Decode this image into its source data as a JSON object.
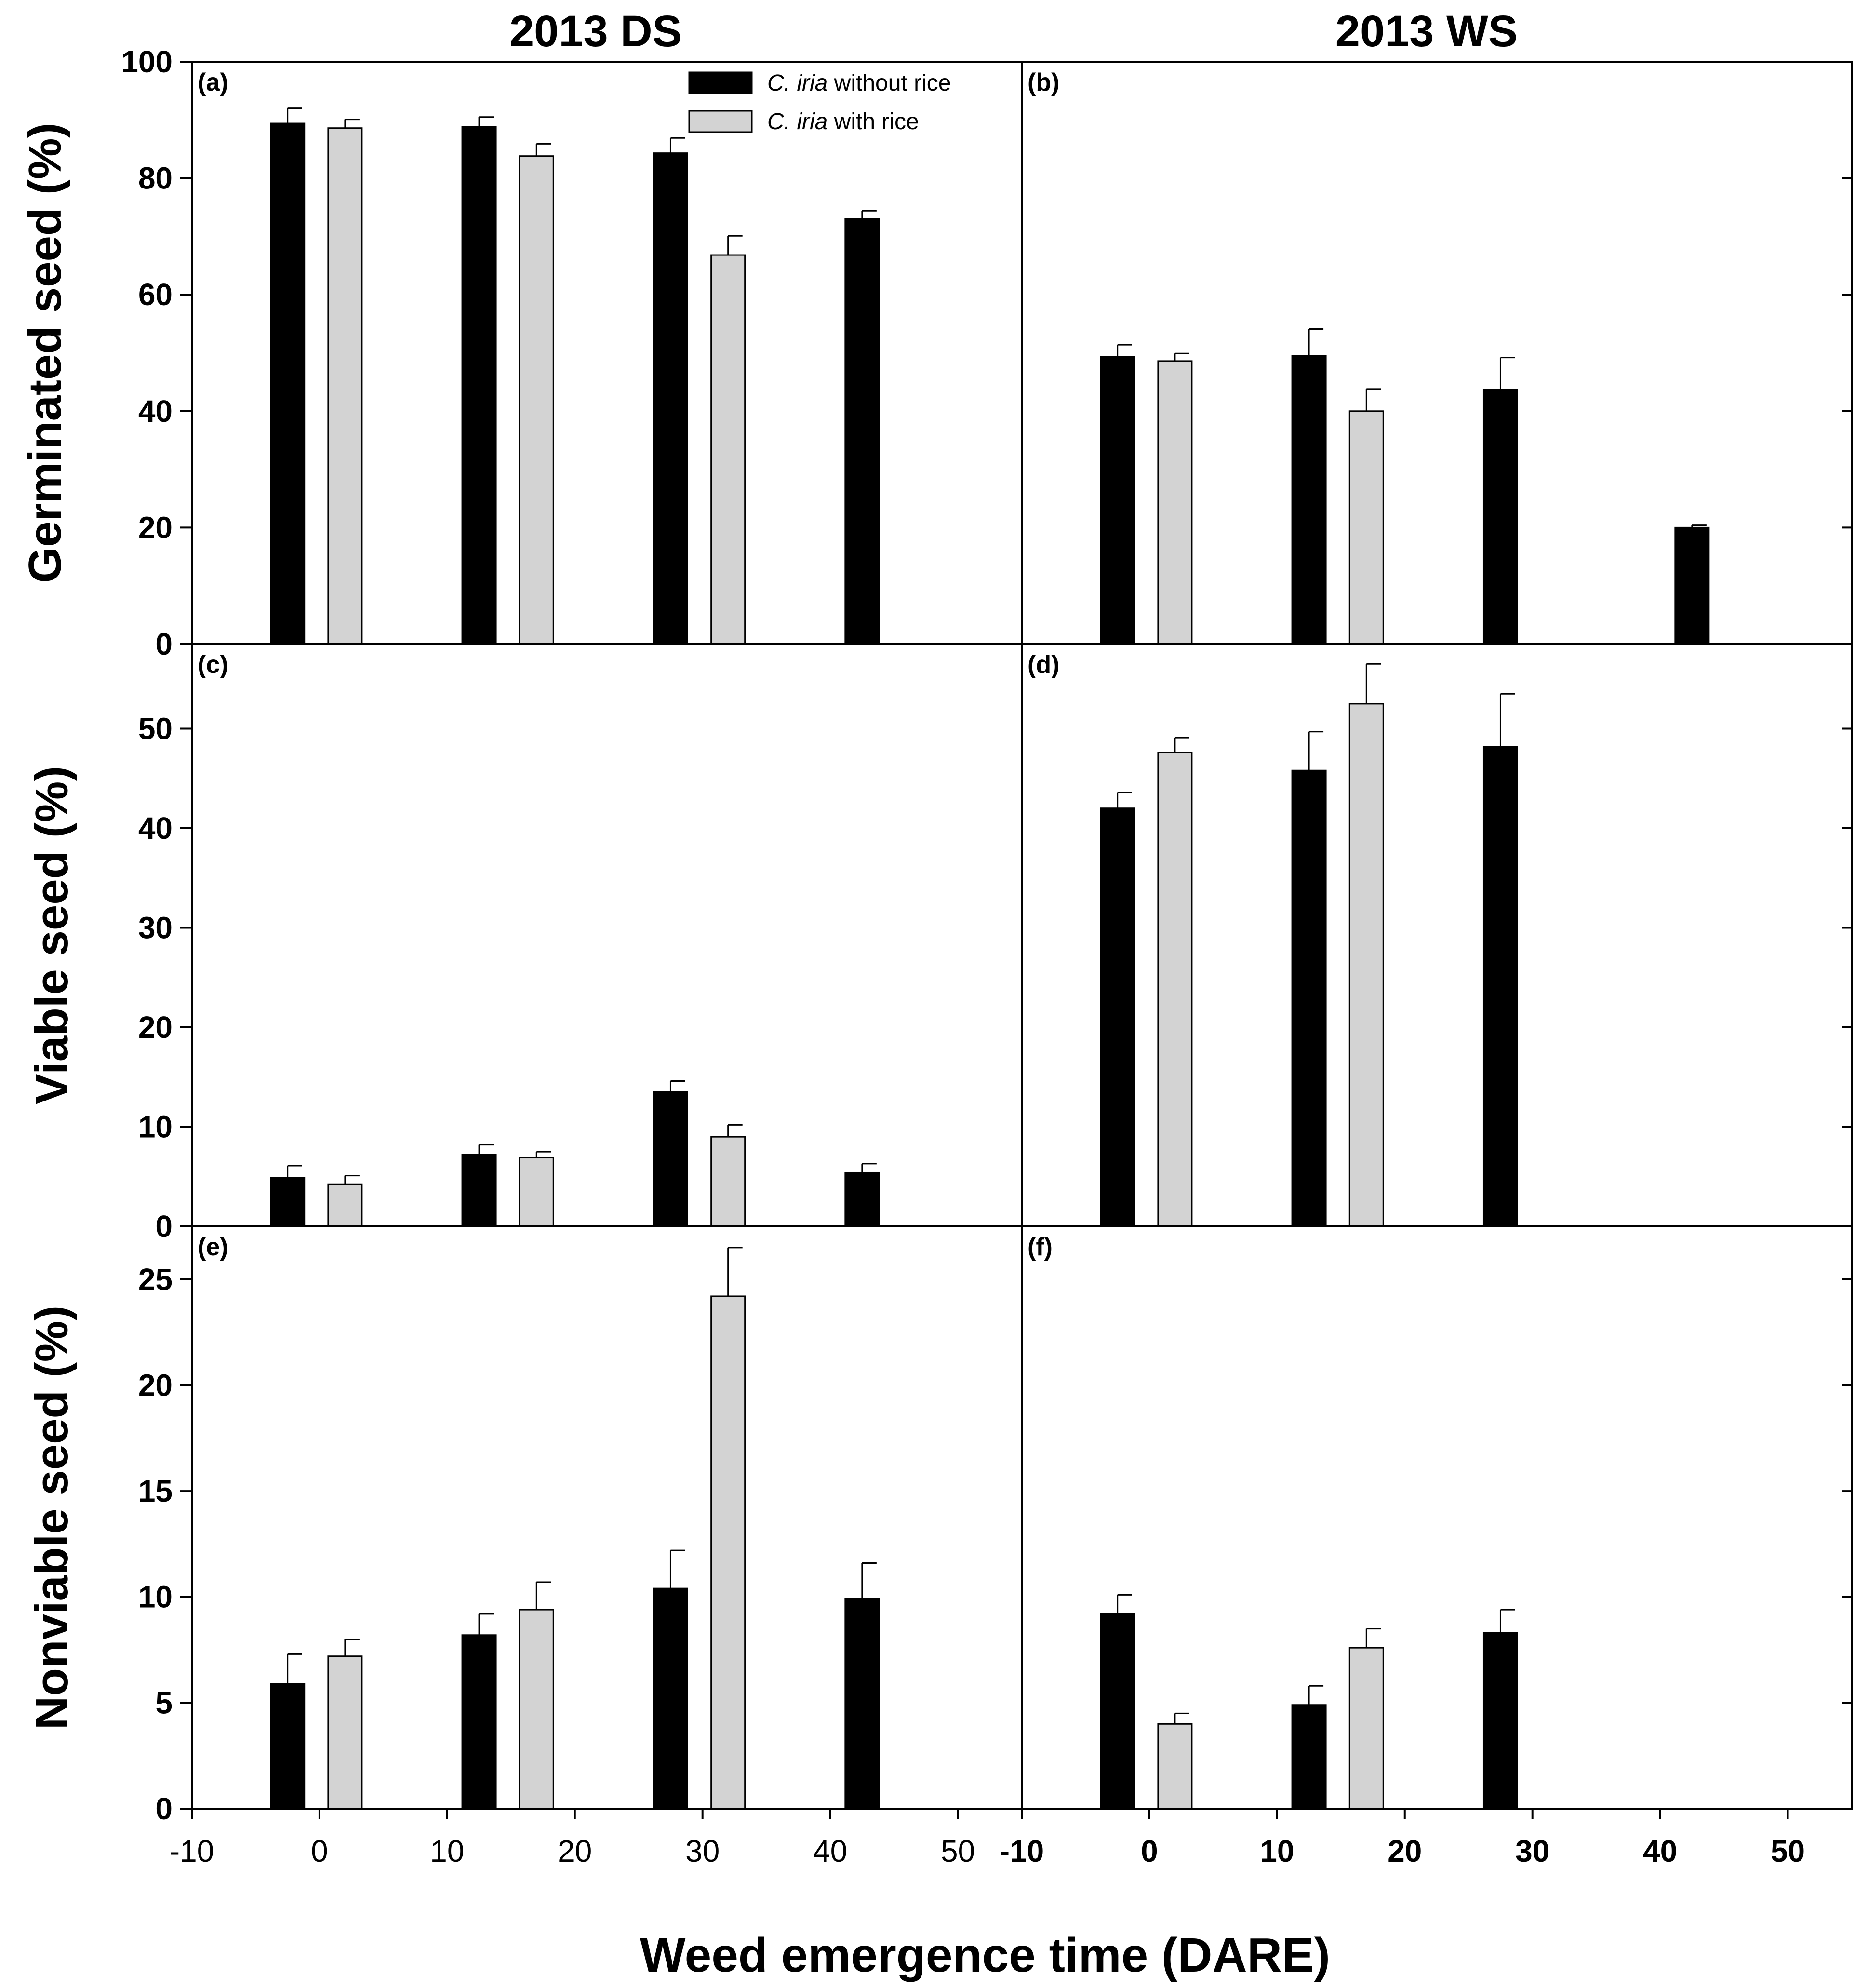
{
  "figure": {
    "column_titles": [
      "2013 DS",
      "2013 WS"
    ],
    "xlabel": "Weed emergence time (DARE)",
    "legend": [
      {
        "species": "C. iria",
        "rest": " without rice",
        "color": "#000000"
      },
      {
        "species": "C. iria",
        "rest": " with rice",
        "color": "#d3d3d3"
      }
    ]
  },
  "chart_data": [
    {
      "type": "bar",
      "panel": "(a)",
      "season": "2013 DS",
      "title": "2013 DS",
      "ylabel": "Germinated seed (%)",
      "xlabel": "Weed emergence time (DARE)",
      "xlim": [
        -10,
        55
      ],
      "ylim": [
        0,
        100
      ],
      "yticks": [
        0,
        20,
        40,
        60,
        80,
        100
      ],
      "xticks": [
        -10,
        0,
        10,
        20,
        30,
        40,
        50
      ],
      "series": [
        {
          "name": "C. iria without rice",
          "color": "#000000",
          "points": [
            {
              "x": -2.5,
              "y": 89.4,
              "err": 2.6
            },
            {
              "x": 12.5,
              "y": 88.8,
              "err": 1.7
            },
            {
              "x": 27.5,
              "y": 84.3,
              "err": 2.6
            },
            {
              "x": 42.5,
              "y": 73.0,
              "err": 1.4
            }
          ]
        },
        {
          "name": "C. iria with rice",
          "color": "#d3d3d3",
          "points": [
            {
              "x": 2,
              "y": 88.6,
              "err": 1.5
            },
            {
              "x": 17,
              "y": 83.8,
              "err": 2.1
            },
            {
              "x": 32,
              "y": 66.8,
              "err": 3.3
            }
          ]
        }
      ]
    },
    {
      "type": "bar",
      "panel": "(b)",
      "season": "2013 WS",
      "title": "2013 WS",
      "ylabel": "Germinated seed (%)",
      "xlabel": "Weed emergence time (DARE)",
      "xlim": [
        -10,
        55
      ],
      "ylim": [
        0,
        100
      ],
      "yticks": [
        0,
        20,
        40,
        60,
        80,
        100
      ],
      "xticks": [
        -10,
        0,
        10,
        20,
        30,
        40,
        50
      ],
      "series": [
        {
          "name": "C. iria without rice",
          "color": "#000000",
          "points": [
            {
              "x": -2.5,
              "y": 49.3,
              "err": 2.1
            },
            {
              "x": 12.5,
              "y": 49.5,
              "err": 4.6
            },
            {
              "x": 27.5,
              "y": 43.7,
              "err": 5.5
            },
            {
              "x": 42.5,
              "y": 20.0,
              "err": 0.4
            }
          ]
        },
        {
          "name": "C. iria with rice",
          "color": "#d3d3d3",
          "points": [
            {
              "x": 2,
              "y": 48.6,
              "err": 1.3
            },
            {
              "x": 17,
              "y": 40.0,
              "err": 3.8
            }
          ]
        }
      ]
    },
    {
      "type": "bar",
      "panel": "(c)",
      "season": "2013 DS",
      "ylabel": "Viable seed (%)",
      "xlabel": "Weed emergence time (DARE)",
      "xlim": [
        -10,
        55
      ],
      "ylim": [
        0,
        58.5
      ],
      "yticks": [
        0,
        10,
        20,
        30,
        40,
        50
      ],
      "xticks": [
        -10,
        0,
        10,
        20,
        30,
        40,
        50
      ],
      "series": [
        {
          "name": "C. iria without rice",
          "color": "#000000",
          "points": [
            {
              "x": -2.5,
              "y": 4.9,
              "err": 1.2
            },
            {
              "x": 12.5,
              "y": 7.2,
              "err": 1.0
            },
            {
              "x": 27.5,
              "y": 13.5,
              "err": 1.1
            },
            {
              "x": 42.5,
              "y": 5.4,
              "err": 0.9
            }
          ]
        },
        {
          "name": "C. iria with rice",
          "color": "#d3d3d3",
          "points": [
            {
              "x": 2,
              "y": 4.2,
              "err": 0.9
            },
            {
              "x": 17,
              "y": 6.9,
              "err": 0.6
            },
            {
              "x": 32,
              "y": 9.0,
              "err": 1.2
            }
          ]
        }
      ]
    },
    {
      "type": "bar",
      "panel": "(d)",
      "season": "2013 WS",
      "ylabel": "Viable seed (%)",
      "xlabel": "Weed emergence time (DARE)",
      "xlim": [
        -10,
        55
      ],
      "ylim": [
        0,
        58.5
      ],
      "yticks": [
        0,
        10,
        20,
        30,
        40,
        50
      ],
      "xticks": [
        -10,
        0,
        10,
        20,
        30,
        40,
        50
      ],
      "series": [
        {
          "name": "C. iria without rice",
          "color": "#000000",
          "points": [
            {
              "x": -2.5,
              "y": 42.0,
              "err": 1.6
            },
            {
              "x": 12.5,
              "y": 45.8,
              "err": 3.9
            },
            {
              "x": 27.5,
              "y": 48.2,
              "err": 5.3
            }
          ]
        },
        {
          "name": "C. iria with rice",
          "color": "#d3d3d3",
          "points": [
            {
              "x": 2,
              "y": 47.6,
              "err": 1.5
            },
            {
              "x": 17,
              "y": 52.5,
              "err": 4.0
            }
          ]
        }
      ]
    },
    {
      "type": "bar",
      "panel": "(e)",
      "season": "2013 DS",
      "ylabel": "Nonviable seed (%)",
      "xlabel": "Weed emergence time (DARE)",
      "xlim": [
        -10,
        55
      ],
      "ylim": [
        0,
        27.5
      ],
      "yticks": [
        0,
        5,
        10,
        15,
        20,
        25
      ],
      "xticks": [
        -10,
        0,
        10,
        20,
        30,
        40,
        50
      ],
      "series": [
        {
          "name": "C. iria without rice",
          "color": "#000000",
          "points": [
            {
              "x": -2.5,
              "y": 5.9,
              "err": 1.4
            },
            {
              "x": 12.5,
              "y": 8.2,
              "err": 1.0
            },
            {
              "x": 27.5,
              "y": 10.4,
              "err": 1.8
            },
            {
              "x": 42.5,
              "y": 9.9,
              "err": 1.7
            }
          ]
        },
        {
          "name": "C. iria with rice",
          "color": "#d3d3d3",
          "points": [
            {
              "x": 2,
              "y": 7.2,
              "err": 0.8
            },
            {
              "x": 17,
              "y": 9.4,
              "err": 1.3
            },
            {
              "x": 32,
              "y": 24.2,
              "err": 2.3
            }
          ]
        }
      ]
    },
    {
      "type": "bar",
      "panel": "(f)",
      "season": "2013 WS",
      "ylabel": "Nonviable seed (%)",
      "xlabel": "Weed emergence time (DARE)",
      "xlim": [
        -10,
        55
      ],
      "ylim": [
        0,
        27.5
      ],
      "yticks": [
        0,
        5,
        10,
        15,
        20,
        25
      ],
      "xticks": [
        -10,
        0,
        10,
        20,
        30,
        40,
        50
      ],
      "series": [
        {
          "name": "C. iria without rice",
          "color": "#000000",
          "points": [
            {
              "x": -2.5,
              "y": 9.2,
              "err": 0.9
            },
            {
              "x": 12.5,
              "y": 4.9,
              "err": 0.9
            },
            {
              "x": 27.5,
              "y": 8.3,
              "err": 1.1
            }
          ]
        },
        {
          "name": "C. iria with rice",
          "color": "#d3d3d3",
          "points": [
            {
              "x": 2,
              "y": 4.0,
              "err": 0.5
            },
            {
              "x": 17,
              "y": 7.6,
              "err": 0.9
            }
          ]
        }
      ]
    }
  ]
}
